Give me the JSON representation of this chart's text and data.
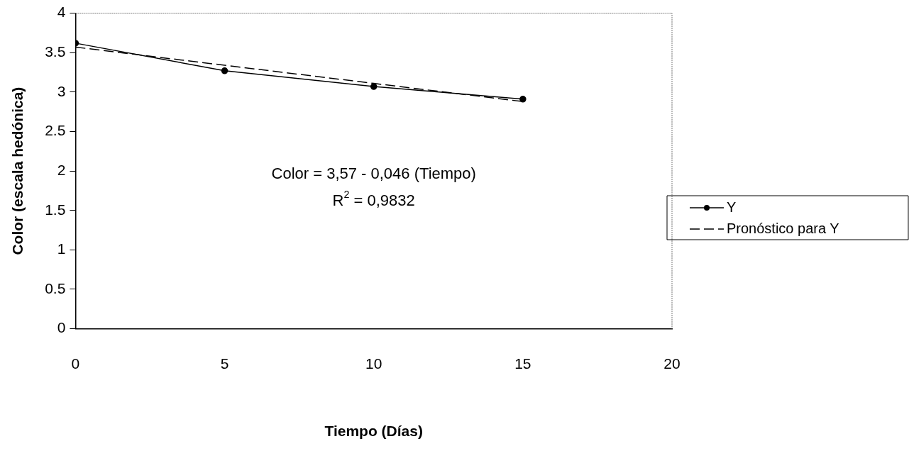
{
  "chart_data": {
    "type": "line",
    "xlabel": "Tiempo (Días)",
    "ylabel": "Color (escala hedónica)",
    "x": [
      0,
      5,
      10,
      15
    ],
    "series": [
      {
        "name": "Y",
        "color": "#000000",
        "values": [
          3.62,
          3.27,
          3.07,
          2.91
        ],
        "marker": "circle",
        "line_style": "solid"
      },
      {
        "name": "Pronóstico para Y",
        "color": "#000000",
        "values": [
          3.57,
          3.34,
          3.11,
          2.88
        ],
        "marker": "none",
        "line_style": "dashed"
      }
    ],
    "xlim": [
      0,
      20
    ],
    "xticks": [
      0,
      5,
      10,
      15,
      20
    ],
    "ylim": [
      0,
      4
    ],
    "yticks": [
      0,
      0.5,
      1,
      1.5,
      2,
      2.5,
      3,
      3.5,
      4
    ],
    "annotations": [
      "Color = 3,57 - 0,046 (Tiempo)",
      "R$^{2}$ = 0,9832"
    ],
    "grid": false,
    "legend": "right"
  }
}
